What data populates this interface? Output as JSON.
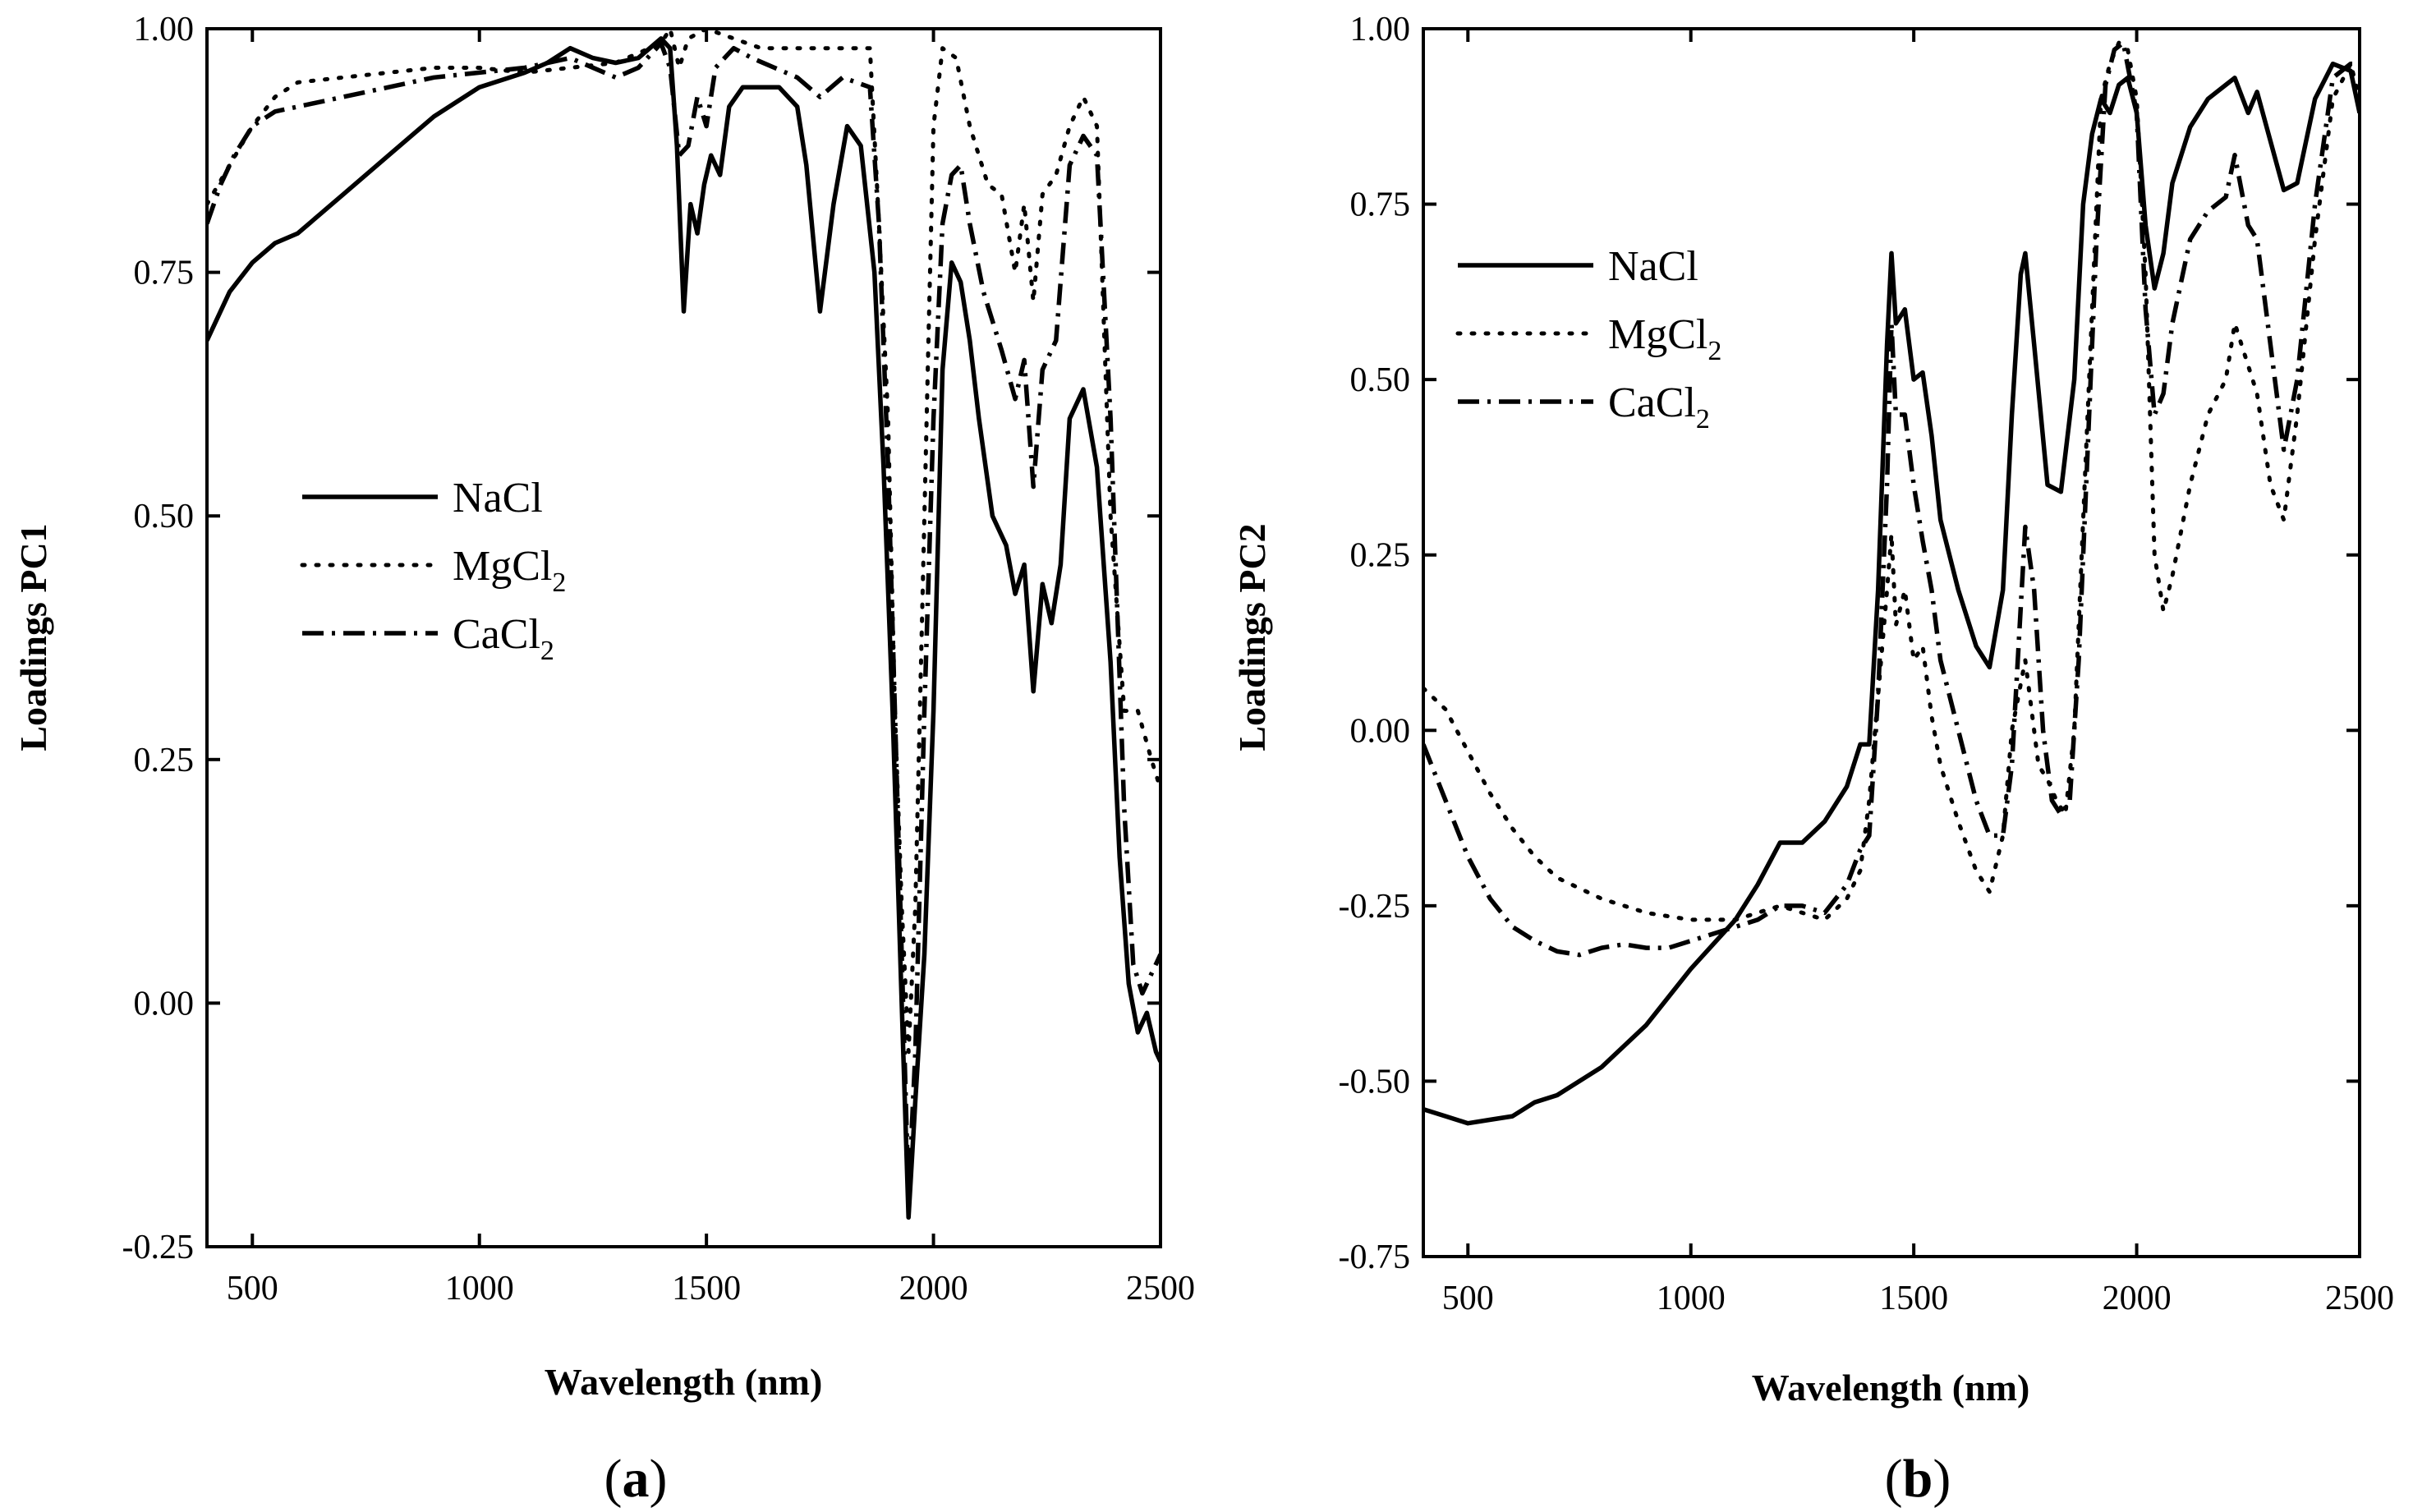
{
  "chart_data": [
    {
      "type": "line",
      "panel_label": "a",
      "xlabel": "Wavelength (nm)",
      "ylabel": "Loadings PC1",
      "xlim": [
        400,
        2500
      ],
      "ylim": [
        -0.25,
        1.0
      ],
      "x_ticks": [
        500,
        1000,
        1500,
        2000,
        2500
      ],
      "x_tick_labels": [
        "500",
        "1000",
        "1500",
        "2000",
        "2500"
      ],
      "y_ticks": [
        -0.25,
        0.0,
        0.25,
        0.5,
        0.75,
        1.0
      ],
      "y_tick_labels": [
        "-0.25",
        "0.00",
        "0.25",
        "0.50",
        "0.75",
        "1.00"
      ],
      "legend_position": "center-left",
      "series": [
        {
          "name": "NaCl",
          "base": "NaCl",
          "sub": "",
          "style": "solid",
          "x": [
            400,
            450,
            500,
            550,
            600,
            650,
            700,
            800,
            900,
            1000,
            1100,
            1150,
            1200,
            1250,
            1300,
            1350,
            1400,
            1420,
            1435,
            1450,
            1465,
            1480,
            1495,
            1510,
            1530,
            1550,
            1580,
            1620,
            1660,
            1700,
            1720,
            1750,
            1780,
            1810,
            1840,
            1870,
            1890,
            1910,
            1930,
            1945,
            1960,
            1980,
            2000,
            2020,
            2040,
            2060,
            2080,
            2100,
            2130,
            2160,
            2180,
            2200,
            2220,
            2240,
            2260,
            2280,
            2300,
            2330,
            2360,
            2390,
            2410,
            2430,
            2450,
            2470,
            2490,
            2500
          ],
          "y": [
            0.68,
            0.73,
            0.76,
            0.78,
            0.79,
            0.81,
            0.83,
            0.87,
            0.91,
            0.94,
            0.955,
            0.965,
            0.98,
            0.97,
            0.965,
            0.97,
            0.99,
            0.98,
            0.88,
            0.71,
            0.82,
            0.79,
            0.84,
            0.87,
            0.85,
            0.92,
            0.94,
            0.94,
            0.94,
            0.92,
            0.86,
            0.71,
            0.82,
            0.9,
            0.88,
            0.75,
            0.55,
            0.3,
            0.0,
            -0.22,
            -0.1,
            0.05,
            0.3,
            0.65,
            0.76,
            0.74,
            0.68,
            0.6,
            0.5,
            0.47,
            0.42,
            0.45,
            0.32,
            0.43,
            0.39,
            0.45,
            0.6,
            0.63,
            0.55,
            0.35,
            0.15,
            0.02,
            -0.03,
            -0.01,
            -0.05,
            -0.06
          ]
        },
        {
          "name": "MgCl2",
          "base": "MgCl",
          "sub": "2",
          "style": "dotted",
          "x": [
            400,
            450,
            500,
            550,
            600,
            700,
            800,
            900,
            1000,
            1100,
            1200,
            1300,
            1400,
            1420,
            1440,
            1460,
            1500,
            1560,
            1620,
            1700,
            1750,
            1800,
            1860,
            1880,
            1900,
            1915,
            1930,
            1945,
            1960,
            1975,
            1990,
            2000,
            2020,
            2050,
            2080,
            2120,
            2150,
            2180,
            2200,
            2220,
            2240,
            2270,
            2300,
            2330,
            2360,
            2390,
            2420,
            2450,
            2480,
            2500
          ],
          "y": [
            0.82,
            0.86,
            0.9,
            0.93,
            0.945,
            0.95,
            0.955,
            0.96,
            0.96,
            0.955,
            0.96,
            0.965,
            0.985,
            1.0,
            0.96,
            0.99,
            1.0,
            0.99,
            0.98,
            0.98,
            0.98,
            0.98,
            0.98,
            0.8,
            0.6,
            0.3,
            0.1,
            -0.05,
            0.1,
            0.4,
            0.7,
            0.9,
            0.98,
            0.97,
            0.9,
            0.84,
            0.83,
            0.75,
            0.82,
            0.72,
            0.83,
            0.85,
            0.9,
            0.93,
            0.9,
            0.5,
            0.3,
            0.3,
            0.25,
            0.22
          ]
        },
        {
          "name": "CaCl2",
          "base": "CaCl",
          "sub": "2",
          "style": "dashdot",
          "x": [
            400,
            430,
            460,
            500,
            550,
            600,
            700,
            800,
            900,
            1000,
            1100,
            1200,
            1300,
            1350,
            1400,
            1420,
            1440,
            1460,
            1480,
            1500,
            1520,
            1560,
            1600,
            1650,
            1700,
            1750,
            1800,
            1860,
            1880,
            1900,
            1915,
            1930,
            1945,
            1960,
            1980,
            2000,
            2020,
            2040,
            2060,
            2080,
            2110,
            2150,
            2180,
            2200,
            2220,
            2240,
            2270,
            2300,
            2330,
            2360,
            2390,
            2420,
            2440,
            2460,
            2480,
            2500
          ],
          "y": [
            0.8,
            0.84,
            0.87,
            0.9,
            0.915,
            0.92,
            0.93,
            0.94,
            0.95,
            0.955,
            0.96,
            0.97,
            0.95,
            0.96,
            0.985,
            0.96,
            0.87,
            0.88,
            0.93,
            0.9,
            0.96,
            0.98,
            0.97,
            0.96,
            0.95,
            0.93,
            0.95,
            0.94,
            0.8,
            0.55,
            0.3,
            0.05,
            -0.2,
            -0.05,
            0.3,
            0.6,
            0.8,
            0.85,
            0.86,
            0.8,
            0.73,
            0.67,
            0.62,
            0.66,
            0.53,
            0.65,
            0.68,
            0.86,
            0.89,
            0.87,
            0.6,
            0.2,
            0.04,
            0.01,
            0.03,
            0.05
          ]
        }
      ]
    },
    {
      "type": "line",
      "panel_label": "b",
      "xlabel": "Wavelength (nm)",
      "ylabel": "Loadings PC2",
      "xlim": [
        400,
        2500
      ],
      "ylim": [
        -0.75,
        1.0
      ],
      "x_ticks": [
        500,
        1000,
        1500,
        2000,
        2500
      ],
      "x_tick_labels": [
        "500",
        "1000",
        "1500",
        "2000",
        "2500"
      ],
      "y_ticks": [
        -0.75,
        -0.5,
        -0.25,
        0.0,
        0.25,
        0.5,
        0.75,
        1.0
      ],
      "y_tick_labels": [
        "-0.75",
        "-0.50",
        "-0.25",
        "0.00",
        "0.25",
        "0.50",
        "0.75",
        "1.00"
      ],
      "legend_position": "upper-left",
      "series": [
        {
          "name": "NaCl",
          "base": "NaCl",
          "sub": "",
          "style": "solid",
          "x": [
            400,
            450,
            500,
            550,
            600,
            650,
            700,
            800,
            900,
            1000,
            1100,
            1150,
            1200,
            1250,
            1300,
            1350,
            1380,
            1400,
            1420,
            1440,
            1450,
            1460,
            1480,
            1500,
            1520,
            1540,
            1560,
            1600,
            1640,
            1670,
            1700,
            1720,
            1740,
            1750,
            1770,
            1800,
            1830,
            1860,
            1880,
            1900,
            1920,
            1940,
            1960,
            1980,
            2000,
            2020,
            2040,
            2060,
            2080,
            2120,
            2160,
            2200,
            2220,
            2250,
            2270,
            2300,
            2330,
            2360,
            2400,
            2440,
            2480,
            2500
          ],
          "y": [
            -0.54,
            -0.55,
            -0.56,
            -0.555,
            -0.55,
            -0.53,
            -0.52,
            -0.48,
            -0.42,
            -0.34,
            -0.27,
            -0.22,
            -0.16,
            -0.16,
            -0.13,
            -0.08,
            -0.02,
            -0.02,
            0.2,
            0.55,
            0.68,
            0.58,
            0.6,
            0.5,
            0.51,
            0.42,
            0.3,
            0.2,
            0.12,
            0.09,
            0.2,
            0.45,
            0.65,
            0.68,
            0.55,
            0.35,
            0.34,
            0.5,
            0.75,
            0.85,
            0.9,
            0.88,
            0.92,
            0.93,
            0.88,
            0.72,
            0.63,
            0.68,
            0.78,
            0.86,
            0.9,
            0.92,
            0.93,
            0.88,
            0.91,
            0.84,
            0.77,
            0.78,
            0.9,
            0.95,
            0.94,
            0.88
          ]
        },
        {
          "name": "MgCl2",
          "base": "MgCl",
          "sub": "2",
          "style": "dotted",
          "x": [
            400,
            450,
            500,
            550,
            600,
            650,
            700,
            800,
            900,
            1000,
            1100,
            1150,
            1200,
            1250,
            1300,
            1350,
            1380,
            1400,
            1420,
            1440,
            1450,
            1460,
            1480,
            1500,
            1520,
            1540,
            1560,
            1600,
            1640,
            1670,
            1700,
            1720,
            1750,
            1760,
            1780,
            1800,
            1820,
            1840,
            1860,
            1880,
            1900,
            1920,
            1940,
            1960,
            1980,
            2000,
            2020,
            2040,
            2060,
            2080,
            2120,
            2160,
            2200,
            2220,
            2250,
            2270,
            2300,
            2330,
            2360,
            2400,
            2440,
            2480,
            2500
          ],
          "y": [
            0.06,
            0.03,
            -0.03,
            -0.09,
            -0.14,
            -0.18,
            -0.21,
            -0.24,
            -0.26,
            -0.27,
            -0.27,
            -0.26,
            -0.25,
            -0.26,
            -0.27,
            -0.24,
            -0.2,
            -0.1,
            0.05,
            0.2,
            0.28,
            0.15,
            0.2,
            0.1,
            0.12,
            0.02,
            -0.05,
            -0.13,
            -0.2,
            -0.23,
            -0.15,
            0.0,
            0.1,
            0.05,
            -0.05,
            -0.07,
            -0.1,
            -0.12,
            0.0,
            0.3,
            0.6,
            0.9,
            0.95,
            0.98,
            0.97,
            0.9,
            0.65,
            0.25,
            0.17,
            0.22,
            0.35,
            0.45,
            0.5,
            0.58,
            0.52,
            0.48,
            0.35,
            0.3,
            0.45,
            0.7,
            0.9,
            0.95,
            0.9
          ]
        },
        {
          "name": "CaCl2",
          "base": "CaCl",
          "sub": "2",
          "style": "dashdot",
          "x": [
            400,
            450,
            500,
            550,
            600,
            650,
            700,
            750,
            800,
            850,
            900,
            950,
            1000,
            1050,
            1100,
            1150,
            1200,
            1250,
            1300,
            1350,
            1380,
            1400,
            1420,
            1440,
            1450,
            1460,
            1480,
            1500,
            1520,
            1540,
            1560,
            1600,
            1640,
            1670,
            1700,
            1720,
            1750,
            1770,
            1790,
            1810,
            1830,
            1850,
            1870,
            1890,
            1910,
            1930,
            1950,
            1970,
            2000,
            2020,
            2040,
            2060,
            2080,
            2120,
            2160,
            2200,
            2220,
            2250,
            2270,
            2300,
            2330,
            2360,
            2400,
            2440,
            2480,
            2500
          ],
          "y": [
            -0.02,
            -0.1,
            -0.18,
            -0.24,
            -0.28,
            -0.3,
            -0.315,
            -0.32,
            -0.31,
            -0.305,
            -0.31,
            -0.31,
            -0.3,
            -0.29,
            -0.28,
            -0.27,
            -0.25,
            -0.25,
            -0.26,
            -0.22,
            -0.17,
            -0.15,
            0.05,
            0.35,
            0.58,
            0.45,
            0.45,
            0.35,
            0.27,
            0.2,
            0.1,
            0.0,
            -0.1,
            -0.15,
            -0.15,
            -0.05,
            0.29,
            0.2,
            0.0,
            -0.1,
            -0.12,
            -0.1,
            0.1,
            0.4,
            0.7,
            0.92,
            0.97,
            0.98,
            0.88,
            0.6,
            0.45,
            0.48,
            0.58,
            0.7,
            0.74,
            0.76,
            0.82,
            0.72,
            0.7,
            0.55,
            0.4,
            0.5,
            0.75,
            0.93,
            0.95,
            0.95
          ]
        }
      ]
    }
  ]
}
